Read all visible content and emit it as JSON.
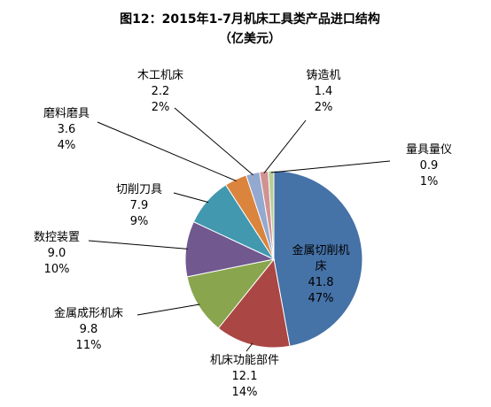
{
  "chart_data": {
    "type": "pie",
    "title": "图12：2015年1-7月机床工具类产品进口结构",
    "subtitle": "（亿美元）",
    "slices": [
      {
        "name": "金属切削机床",
        "name_lines": [
          "金属切削机",
          "床"
        ],
        "value": 41.8,
        "percent": "47%",
        "color": "#4572A7"
      },
      {
        "name": "机床功能部件",
        "name_lines": [
          "机床功能部件"
        ],
        "value": 12.1,
        "percent": "14%",
        "color": "#AA4643"
      },
      {
        "name": "金属成形机床",
        "name_lines": [
          "金属成形机床"
        ],
        "value": 9.8,
        "percent": "11%",
        "color": "#89A54E"
      },
      {
        "name": "数控装置",
        "name_lines": [
          "数控装置"
        ],
        "value": 9.0,
        "percent": "10%",
        "color": "#71588F"
      },
      {
        "name": "切削刀具",
        "name_lines": [
          "切削刀具"
        ],
        "value": 7.9,
        "percent": "9%",
        "color": "#4198AF"
      },
      {
        "name": "磨料磨具",
        "name_lines": [
          "磨料磨具"
        ],
        "value": 3.6,
        "percent": "4%",
        "color": "#DB843D"
      },
      {
        "name": "木工机床",
        "name_lines": [
          "木工机床"
        ],
        "value": 2.2,
        "percent": "2%",
        "color": "#93A9CF"
      },
      {
        "name": "铸造机",
        "name_lines": [
          "铸造机"
        ],
        "value": 1.4,
        "percent": "2%",
        "color": "#D19392"
      },
      {
        "name": "量具量仪",
        "name_lines": [
          "量具量仪"
        ],
        "value": 0.9,
        "percent": "1%",
        "color": "#B9CD96"
      }
    ]
  }
}
